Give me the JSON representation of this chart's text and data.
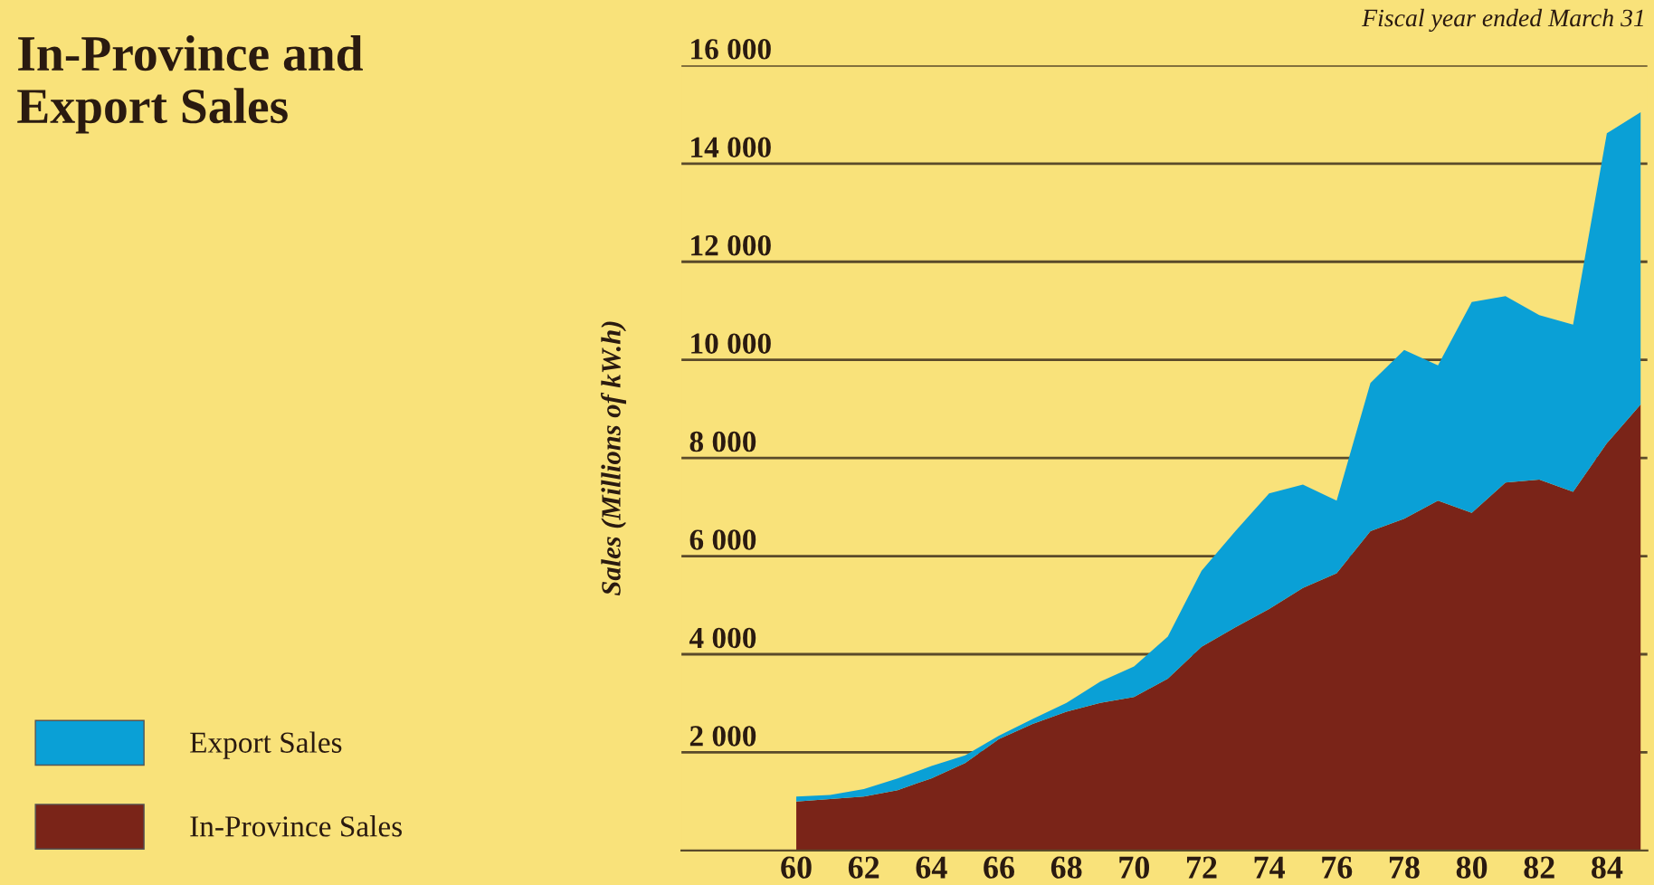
{
  "chart_data": {
    "type": "area",
    "title": "In-Province and\nExport Sales",
    "ylabel": "Sales (Millions of kW.h)",
    "annotations": [
      "Fiscal year ended March 31"
    ],
    "x": [
      60,
      61,
      62,
      63,
      64,
      65,
      66,
      67,
      68,
      69,
      70,
      71,
      72,
      73,
      74,
      75,
      76,
      77,
      78,
      79,
      80,
      81,
      82,
      83,
      84,
      85
    ],
    "stacked": true,
    "series": [
      {
        "name": "In-Province Sales",
        "color": "#7a2418",
        "values": [
          1000,
          1050,
          1100,
          1230,
          1470,
          1780,
          2270,
          2580,
          2830,
          3010,
          3130,
          3500,
          4150,
          4550,
          4920,
          5350,
          5650,
          6510,
          6760,
          7130,
          6880,
          7500,
          7560,
          7310,
          8300,
          9090
        ]
      },
      {
        "name": "Export Sales",
        "color": "#0aa0d6",
        "values": [
          100,
          80,
          150,
          240,
          250,
          160,
          70,
          100,
          180,
          430,
          620,
          860,
          1550,
          1960,
          2360,
          2110,
          1480,
          3020,
          3440,
          2760,
          4300,
          3800,
          3350,
          3410,
          6320,
          5960
        ]
      }
    ],
    "xlim": [
      56.6,
      85.2
    ],
    "xticks": [
      60,
      62,
      64,
      66,
      68,
      70,
      72,
      74,
      76,
      78,
      80,
      82,
      84
    ],
    "ylim": [
      0,
      16000
    ],
    "yticks": [
      {
        "value": 2000,
        "label": "2 000"
      },
      {
        "value": 4000,
        "label": "4 000"
      },
      {
        "value": 6000,
        "label": "6 000"
      },
      {
        "value": 8000,
        "label": "8 000"
      },
      {
        "value": 10000,
        "label": "10 000"
      },
      {
        "value": 12000,
        "label": "12 000"
      },
      {
        "value": 14000,
        "label": "14 000"
      },
      {
        "value": 16000,
        "label": "16 000"
      }
    ],
    "grid": "y",
    "legend": "bottom left"
  }
}
